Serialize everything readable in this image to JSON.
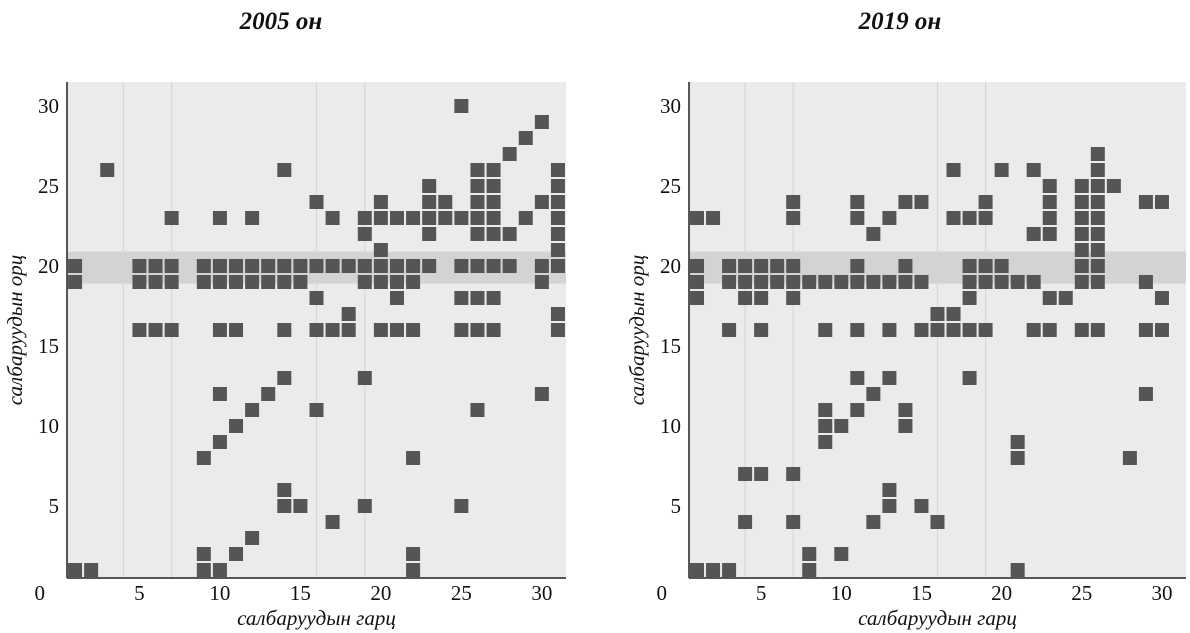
{
  "chart_data": [
    {
      "type": "scatter",
      "title": "2005 он",
      "xlabel": "салбаруудын гарц",
      "ylabel": "салбаруудын орц",
      "xlim": [
        0,
        31
      ],
      "ylim": [
        0,
        31
      ],
      "xticks": [
        5,
        10,
        15,
        20,
        25,
        30
      ],
      "yticks": [
        5,
        10,
        15,
        20,
        25,
        30
      ],
      "origin_label": "0",
      "points": [
        [
          1,
          1
        ],
        [
          2,
          1
        ],
        [
          1,
          19
        ],
        [
          1,
          20
        ],
        [
          3,
          26
        ],
        [
          5,
          16
        ],
        [
          5,
          19
        ],
        [
          5,
          20
        ],
        [
          6,
          16
        ],
        [
          6,
          19
        ],
        [
          6,
          20
        ],
        [
          7,
          16
        ],
        [
          7,
          19
        ],
        [
          7,
          20
        ],
        [
          7,
          23
        ],
        [
          9,
          1
        ],
        [
          9,
          2
        ],
        [
          9,
          8
        ],
        [
          9,
          19
        ],
        [
          9,
          20
        ],
        [
          10,
          1
        ],
        [
          10,
          9
        ],
        [
          10,
          12
        ],
        [
          10,
          16
        ],
        [
          10,
          19
        ],
        [
          10,
          20
        ],
        [
          10,
          23
        ],
        [
          11,
          2
        ],
        [
          11,
          10
        ],
        [
          11,
          16
        ],
        [
          11,
          19
        ],
        [
          11,
          20
        ],
        [
          12,
          3
        ],
        [
          12,
          11
        ],
        [
          12,
          19
        ],
        [
          12,
          20
        ],
        [
          12,
          23
        ],
        [
          13,
          12
        ],
        [
          13,
          19
        ],
        [
          13,
          20
        ],
        [
          14,
          5
        ],
        [
          14,
          6
        ],
        [
          14,
          13
        ],
        [
          14,
          16
        ],
        [
          14,
          19
        ],
        [
          14,
          20
        ],
        [
          14,
          26
        ],
        [
          15,
          5
        ],
        [
          15,
          19
        ],
        [
          15,
          20
        ],
        [
          16,
          11
        ],
        [
          16,
          16
        ],
        [
          16,
          18
        ],
        [
          16,
          20
        ],
        [
          16,
          24
        ],
        [
          17,
          4
        ],
        [
          17,
          16
        ],
        [
          17,
          20
        ],
        [
          17,
          23
        ],
        [
          18,
          16
        ],
        [
          18,
          17
        ],
        [
          18,
          20
        ],
        [
          19,
          5
        ],
        [
          19,
          13
        ],
        [
          19,
          19
        ],
        [
          19,
          20
        ],
        [
          19,
          22
        ],
        [
          19,
          23
        ],
        [
          20,
          16
        ],
        [
          20,
          19
        ],
        [
          20,
          20
        ],
        [
          20,
          21
        ],
        [
          20,
          23
        ],
        [
          20,
          24
        ],
        [
          21,
          16
        ],
        [
          21,
          18
        ],
        [
          21,
          19
        ],
        [
          21,
          20
        ],
        [
          21,
          23
        ],
        [
          22,
          1
        ],
        [
          22,
          2
        ],
        [
          22,
          8
        ],
        [
          22,
          16
        ],
        [
          22,
          19
        ],
        [
          22,
          20
        ],
        [
          22,
          23
        ],
        [
          23,
          20
        ],
        [
          23,
          22
        ],
        [
          23,
          23
        ],
        [
          23,
          24
        ],
        [
          23,
          25
        ],
        [
          24,
          23
        ],
        [
          24,
          24
        ],
        [
          25,
          5
        ],
        [
          25,
          16
        ],
        [
          25,
          18
        ],
        [
          25,
          20
        ],
        [
          25,
          23
        ],
        [
          25,
          30
        ],
        [
          26,
          11
        ],
        [
          26,
          16
        ],
        [
          26,
          18
        ],
        [
          26,
          20
        ],
        [
          26,
          22
        ],
        [
          26,
          23
        ],
        [
          26,
          24
        ],
        [
          26,
          25
        ],
        [
          26,
          26
        ],
        [
          27,
          16
        ],
        [
          27,
          18
        ],
        [
          27,
          20
        ],
        [
          27,
          22
        ],
        [
          27,
          23
        ],
        [
          27,
          24
        ],
        [
          27,
          25
        ],
        [
          27,
          26
        ],
        [
          28,
          20
        ],
        [
          28,
          22
        ],
        [
          28,
          27
        ],
        [
          29,
          23
        ],
        [
          29,
          28
        ],
        [
          30,
          12
        ],
        [
          30,
          19
        ],
        [
          30,
          20
        ],
        [
          30,
          24
        ],
        [
          30,
          29
        ],
        [
          31,
          16
        ],
        [
          31,
          17
        ],
        [
          31,
          20
        ],
        [
          31,
          21
        ],
        [
          31,
          22
        ],
        [
          31,
          23
        ],
        [
          31,
          24
        ],
        [
          31,
          25
        ],
        [
          31,
          26
        ]
      ]
    },
    {
      "type": "scatter",
      "title": "2019 он",
      "xlabel": "салбаруудын гарц",
      "ylabel": "салбаруудын орц",
      "xlim": [
        0,
        31
      ],
      "ylim": [
        0,
        31
      ],
      "xticks": [
        5,
        10,
        15,
        20,
        25,
        30
      ],
      "yticks": [
        5,
        10,
        15,
        20,
        25,
        30
      ],
      "origin_label": "0",
      "points": [
        [
          1,
          1
        ],
        [
          1,
          18
        ],
        [
          1,
          19
        ],
        [
          1,
          20
        ],
        [
          1,
          23
        ],
        [
          2,
          1
        ],
        [
          2,
          23
        ],
        [
          3,
          1
        ],
        [
          3,
          16
        ],
        [
          3,
          19
        ],
        [
          3,
          20
        ],
        [
          4,
          4
        ],
        [
          4,
          7
        ],
        [
          4,
          18
        ],
        [
          4,
          19
        ],
        [
          4,
          20
        ],
        [
          5,
          7
        ],
        [
          5,
          16
        ],
        [
          5,
          18
        ],
        [
          5,
          19
        ],
        [
          5,
          20
        ],
        [
          6,
          19
        ],
        [
          6,
          20
        ],
        [
          7,
          4
        ],
        [
          7,
          7
        ],
        [
          7,
          18
        ],
        [
          7,
          19
        ],
        [
          7,
          20
        ],
        [
          7,
          23
        ],
        [
          7,
          24
        ],
        [
          8,
          1
        ],
        [
          8,
          2
        ],
        [
          8,
          19
        ],
        [
          9,
          9
        ],
        [
          9,
          10
        ],
        [
          9,
          11
        ],
        [
          9,
          16
        ],
        [
          9,
          19
        ],
        [
          10,
          2
        ],
        [
          10,
          10
        ],
        [
          10,
          19
        ],
        [
          11,
          11
        ],
        [
          11,
          13
        ],
        [
          11,
          16
        ],
        [
          11,
          19
        ],
        [
          11,
          20
        ],
        [
          11,
          23
        ],
        [
          11,
          24
        ],
        [
          12,
          4
        ],
        [
          12,
          12
        ],
        [
          12,
          19
        ],
        [
          12,
          22
        ],
        [
          13,
          5
        ],
        [
          13,
          6
        ],
        [
          13,
          13
        ],
        [
          13,
          16
        ],
        [
          13,
          19
        ],
        [
          13,
          23
        ],
        [
          14,
          10
        ],
        [
          14,
          11
        ],
        [
          14,
          19
        ],
        [
          14,
          20
        ],
        [
          14,
          24
        ],
        [
          15,
          5
        ],
        [
          15,
          16
        ],
        [
          15,
          19
        ],
        [
          15,
          24
        ],
        [
          16,
          4
        ],
        [
          16,
          16
        ],
        [
          16,
          17
        ],
        [
          17,
          16
        ],
        [
          17,
          17
        ],
        [
          17,
          23
        ],
        [
          17,
          26
        ],
        [
          18,
          13
        ],
        [
          18,
          16
        ],
        [
          18,
          18
        ],
        [
          18,
          19
        ],
        [
          18,
          20
        ],
        [
          18,
          23
        ],
        [
          19,
          16
        ],
        [
          19,
          19
        ],
        [
          19,
          20
        ],
        [
          19,
          23
        ],
        [
          19,
          24
        ],
        [
          20,
          19
        ],
        [
          20,
          20
        ],
        [
          20,
          26
        ],
        [
          21,
          1
        ],
        [
          21,
          8
        ],
        [
          21,
          9
        ],
        [
          21,
          19
        ],
        [
          22,
          16
        ],
        [
          22,
          19
        ],
        [
          22,
          22
        ],
        [
          22,
          26
        ],
        [
          23,
          16
        ],
        [
          23,
          18
        ],
        [
          23,
          22
        ],
        [
          23,
          23
        ],
        [
          23,
          24
        ],
        [
          23,
          25
        ],
        [
          24,
          18
        ],
        [
          25,
          16
        ],
        [
          25,
          19
        ],
        [
          25,
          20
        ],
        [
          25,
          21
        ],
        [
          25,
          22
        ],
        [
          25,
          23
        ],
        [
          25,
          24
        ],
        [
          25,
          25
        ],
        [
          26,
          16
        ],
        [
          26,
          19
        ],
        [
          26,
          20
        ],
        [
          26,
          21
        ],
        [
          26,
          22
        ],
        [
          26,
          23
        ],
        [
          26,
          24
        ],
        [
          26,
          25
        ],
        [
          26,
          26
        ],
        [
          26,
          27
        ],
        [
          27,
          25
        ],
        [
          28,
          8
        ],
        [
          29,
          12
        ],
        [
          29,
          16
        ],
        [
          29,
          19
        ],
        [
          29,
          24
        ],
        [
          30,
          16
        ],
        [
          30,
          18
        ],
        [
          30,
          24
        ]
      ]
    }
  ]
}
